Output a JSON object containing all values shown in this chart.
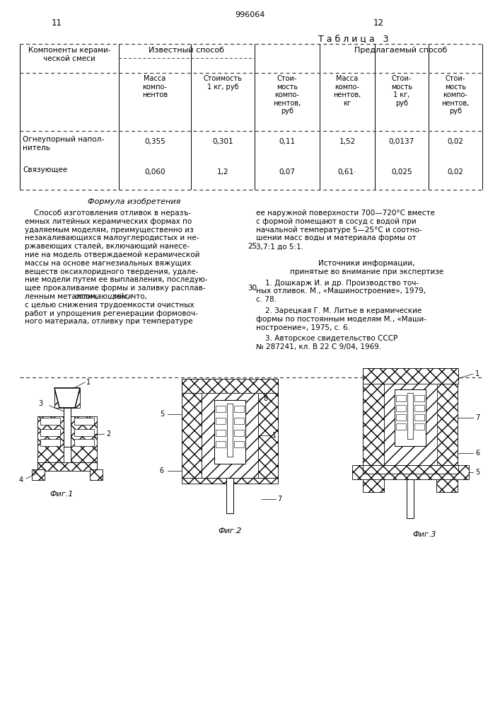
{
  "page_num_left": "11",
  "page_num_center": "996064",
  "page_num_right": "12",
  "table_title": "Т а б л и ц а   3",
  "col_header_1": "Компоненты керами-\nческой смеси",
  "col_group_2": "Известный способ",
  "col_group_3": "Предлагаемый способ",
  "row1_name": "Огнеупорный напол-\nнитель",
  "row1_vals": [
    "0,355",
    "0,301",
    "0,11",
    "1,52",
    "0,0137",
    "0,02"
  ],
  "row2_name": "Связующее",
  "row2_vals": [
    "0,060",
    "1,2",
    "0,07",
    "0,61·",
    "0,025",
    "0,02"
  ],
  "bg_color": "#ffffff"
}
